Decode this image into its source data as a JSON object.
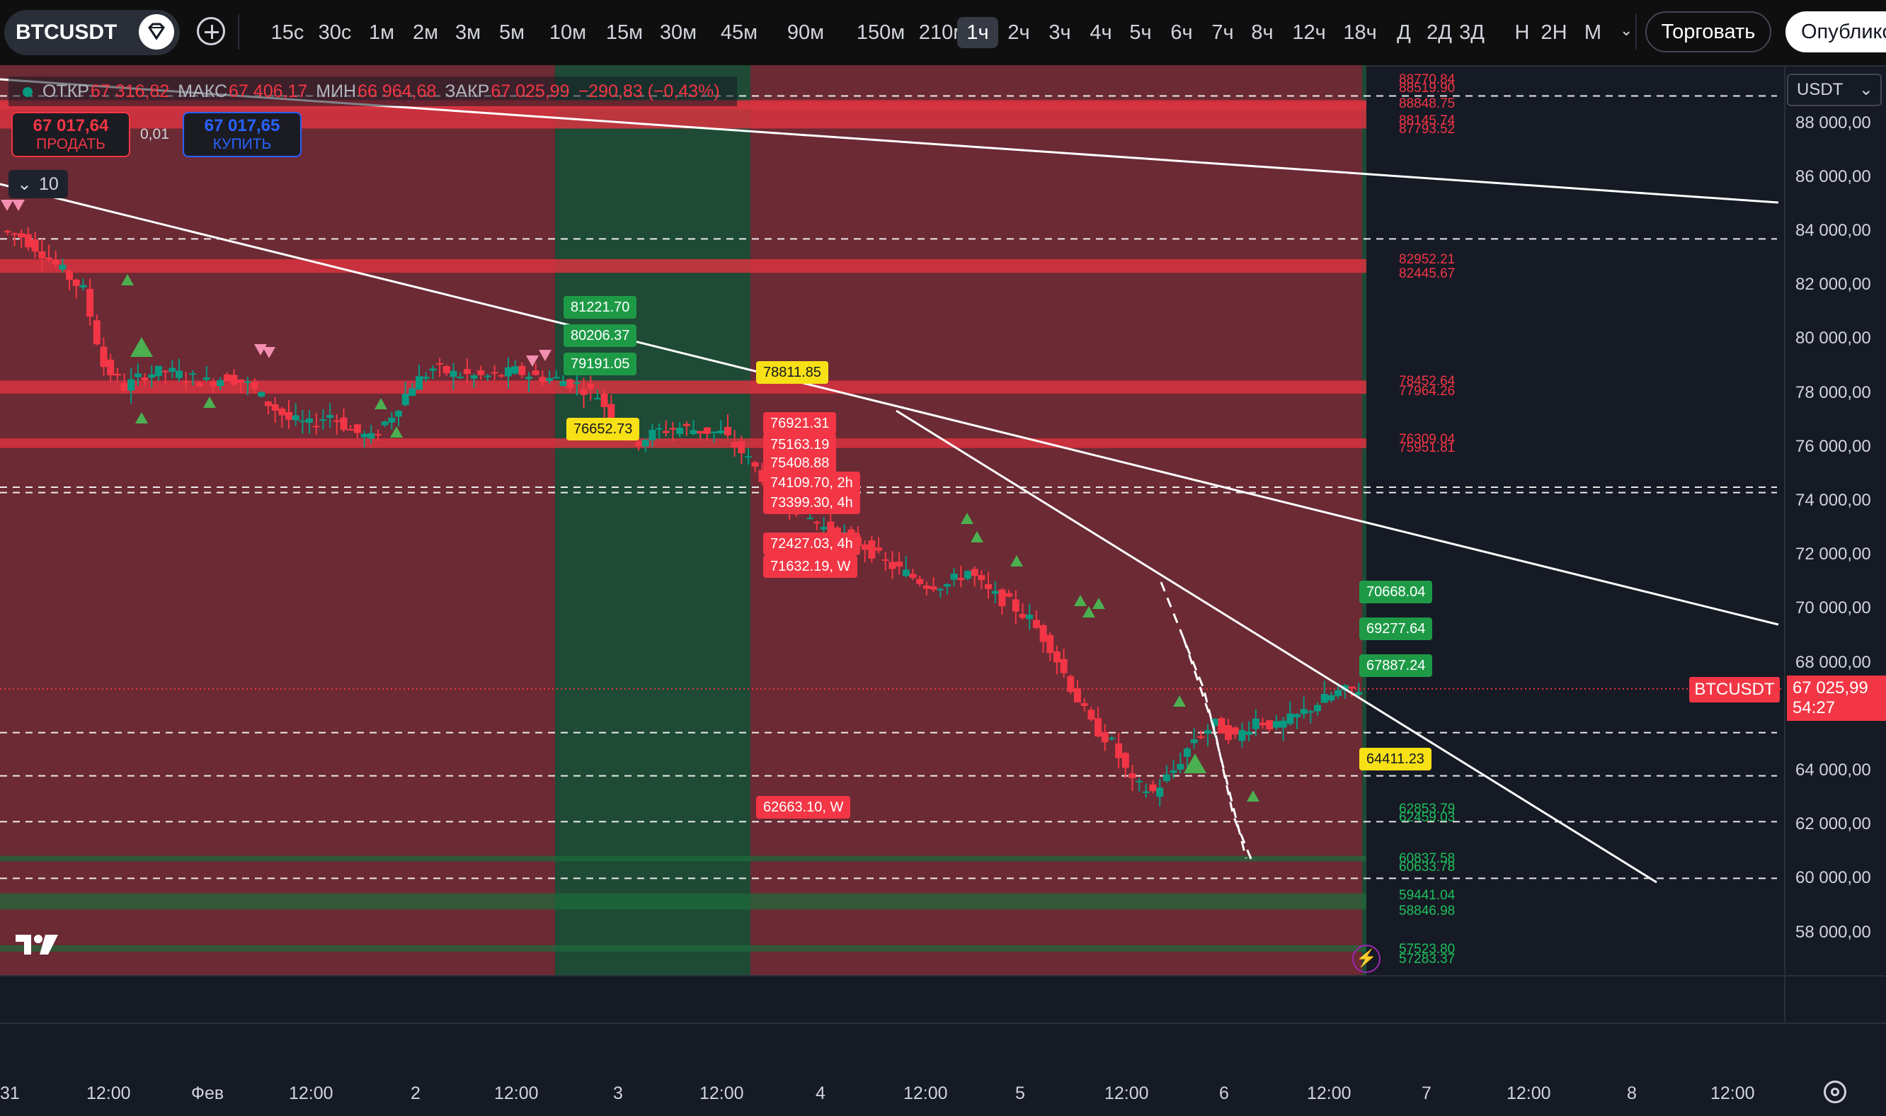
{
  "toolbar": {
    "symbol": "BTCUSDT",
    "timeframes": [
      "15с",
      "30с",
      "1м",
      "2м",
      "3м",
      "5м",
      "10м",
      "15м",
      "30м",
      "45м",
      "90м",
      "150м",
      "210м",
      "1ч",
      "2ч",
      "3ч",
      "4ч",
      "5ч",
      "6ч",
      "7ч",
      "8ч",
      "12ч",
      "18ч",
      "Д",
      "2Д",
      "3Д",
      "Н",
      "2Н",
      "М"
    ],
    "active_timeframe": "1ч",
    "trade_label": "Торговать",
    "publish_label": "Опублико"
  },
  "legend": {
    "open_label": "ОТКР",
    "open": "67 316,82",
    "high_label": "МАКС",
    "high": "67 406,17",
    "low_label": "МИН",
    "low": "66 964,68",
    "close_label": "ЗАКР",
    "close": "67 025,99",
    "change": "−290,83 (−0,43%)"
  },
  "order_panel": {
    "sell_price": "67 017,64",
    "sell_label": "ПРОДАТЬ",
    "spread": "0,01",
    "buy_price": "67 017,65",
    "buy_label": "КУПИТЬ",
    "collapse_count": "10"
  },
  "price_axis": {
    "currency": "USDT",
    "labels": [
      "88 000,00",
      "86 000,00",
      "84 000,00",
      "82 000,00",
      "80 000,00",
      "78 000,00",
      "76 000,00",
      "74 000,00",
      "72 000,00",
      "70 000,00",
      "68 000,00",
      "64 000,00",
      "62 000,00",
      "60 000,00",
      "58 000,00"
    ],
    "current_symbol": "BTCUSDT",
    "current_price": "67 025,99",
    "countdown": "54:27"
  },
  "time_axis": {
    "labels": [
      "31",
      "12:00",
      "Фев",
      "12:00",
      "2",
      "12:00",
      "3",
      "12:00",
      "4",
      "12:00",
      "5",
      "12:00",
      "6",
      "12:00",
      "7",
      "12:00",
      "8",
      "12:00"
    ]
  },
  "tags": {
    "green": [
      "81221.70",
      "80206.37",
      "79191.05",
      "70668.04",
      "69277.64",
      "67887.24"
    ],
    "yellow": [
      "78811.85",
      "76652.73",
      "64411.23"
    ],
    "red": [
      "76921.31",
      "75163.19",
      "75408.88",
      "74109.70, 2h",
      "73399.30, 4h",
      "72427.03, 4h",
      "71632.19, W",
      "62663.10, W"
    ]
  },
  "levels": {
    "red": [
      "88770.84",
      "88519.90",
      "88848.75",
      "88145.74",
      "87793.52",
      "82952.21",
      "82445.67",
      "78452.64",
      "77964.26",
      "76309.04",
      "75951.81"
    ],
    "green": [
      "62853.79",
      "62459.03",
      "60837.58",
      "60633.78",
      "59441.04",
      "58846.98",
      "57523.80",
      "57283.37"
    ]
  },
  "chart_data": {
    "type": "candlestick",
    "symbol": "BTCUSDT",
    "interval": "1h",
    "x_labels": [
      "31",
      "12:00",
      "Фев",
      "12:00",
      "2",
      "12:00",
      "3",
      "12:00",
      "4",
      "12:00",
      "5",
      "12:00",
      "6",
      "12:00",
      "7",
      "12:00",
      "8",
      "12:00"
    ],
    "ylim": [
      56800,
      89000
    ],
    "close_path": [
      84000,
      83800,
      83200,
      82500,
      81800,
      79000,
      78200,
      78700,
      78800,
      78600,
      78400,
      78600,
      78300,
      77600,
      77000,
      76800,
      77200,
      76600,
      76300,
      77200,
      78300,
      78900,
      78700,
      78600,
      78600,
      78800,
      78600,
      78500,
      78300,
      77900,
      76800,
      76200,
      76600,
      76700,
      76600,
      76500,
      75800,
      74900,
      74200,
      73500,
      73000,
      72700,
      72300,
      71700,
      71300,
      70900,
      70900,
      71400,
      70600,
      70200,
      69600,
      68600,
      67100,
      65700,
      65000,
      63500,
      63200,
      64000,
      65200,
      65700,
      65200,
      65900,
      65600,
      66000,
      66500,
      66900,
      67026
    ],
    "current_price": 67025.99,
    "colors": {
      "up": "#089981",
      "down": "#f23645",
      "zone_red": "#6b2a34",
      "zone_green": "#1e4a36"
    }
  }
}
